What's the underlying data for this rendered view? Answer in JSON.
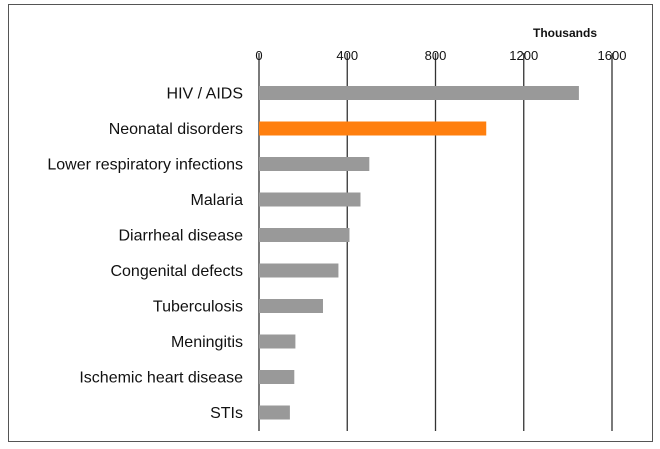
{
  "chart_data": {
    "type": "bar",
    "orientation": "horizontal",
    "unit_label": "Thousands",
    "categories": [
      "HIV / AIDS",
      "Neonatal disorders",
      "Lower respiratory infections",
      "Malaria",
      "Diarrheal disease",
      "Congenital defects",
      "Tuberculosis",
      "Meningitis",
      "Ischemic heart disease",
      "STIs"
    ],
    "values": [
      1450,
      1030,
      500,
      460,
      410,
      360,
      290,
      165,
      160,
      140
    ],
    "highlight_index": 1,
    "xlim": [
      0,
      1600
    ],
    "xticks": [
      "0",
      "400",
      "800",
      "1200",
      "1600"
    ],
    "grid": true,
    "colors": {
      "bar": "#999999",
      "highlight": "#ff7f0e",
      "grid": "#333333"
    }
  }
}
